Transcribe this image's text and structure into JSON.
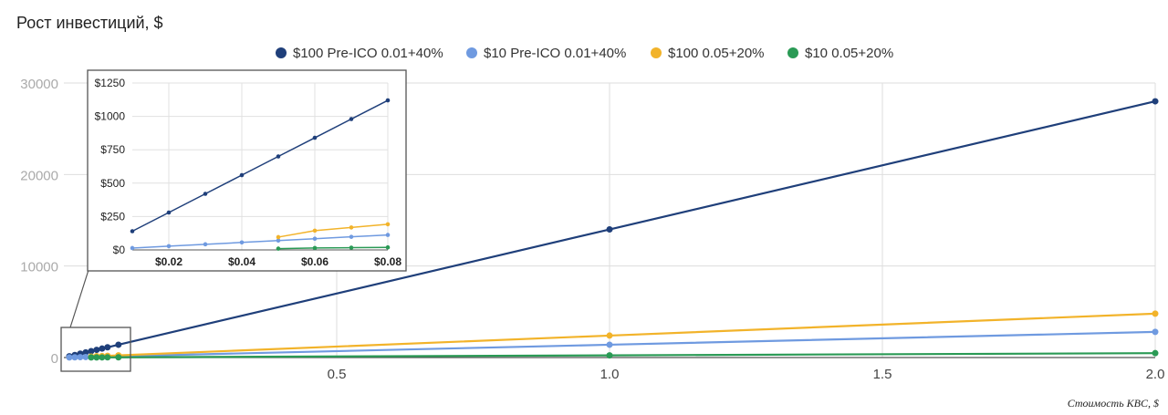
{
  "chart_data": {
    "type": "line",
    "title": "Рост инвестиций, $",
    "xlabel": "Стоимость KBC, $",
    "ylabel": "",
    "legend_position": "top",
    "grid": true,
    "xlim": [
      0,
      2.0
    ],
    "ylim": [
      0,
      30000
    ],
    "x_ticks": [
      "0.5",
      "1.0",
      "1.5",
      "2.0"
    ],
    "y_ticks": [
      "0",
      "10000",
      "20000",
      "30000"
    ],
    "series": [
      {
        "name": "$100 Pre-ICO 0.01+40%",
        "color": "#1f3f7a",
        "x": [
          0.01,
          0.02,
          0.03,
          0.04,
          0.05,
          0.06,
          0.07,
          0.08,
          0.1,
          1.0,
          2.0
        ],
        "y": [
          140,
          280,
          420,
          560,
          700,
          840,
          980,
          1120,
          1400,
          14000,
          28000
        ]
      },
      {
        "name": "$10 Pre-ICO 0.01+40%",
        "color": "#6f9ae0",
        "x": [
          0.01,
          0.02,
          0.03,
          0.04,
          0.05,
          0.06,
          0.07,
          0.08,
          0.1,
          1.0,
          2.0
        ],
        "y": [
          14,
          28,
          42,
          56,
          70,
          84,
          98,
          112,
          140,
          1400,
          2800
        ]
      },
      {
        "name": "$100 0.05+20%",
        "color": "#f2b32a",
        "x": [
          0.05,
          0.06,
          0.07,
          0.08,
          0.1,
          1.0,
          2.0
        ],
        "y": [
          96,
          144,
          168,
          192,
          240,
          2400,
          4800
        ]
      },
      {
        "name": "$10 0.05+20%",
        "color": "#2a9a55",
        "x": [
          0.05,
          0.06,
          0.07,
          0.08,
          0.1,
          1.0,
          2.0
        ],
        "y": [
          9.6,
          14.4,
          16.8,
          19.2,
          24,
          240,
          480
        ]
      }
    ],
    "inset": {
      "xlim": [
        0.01,
        0.08
      ],
      "ylim": [
        0,
        1250
      ],
      "x_ticks": [
        "$0.02",
        "$0.04",
        "$0.06",
        "$0.08"
      ],
      "y_ticks": [
        "$0",
        "$250",
        "$500",
        "$750",
        "$1000",
        "$1250"
      ]
    }
  }
}
